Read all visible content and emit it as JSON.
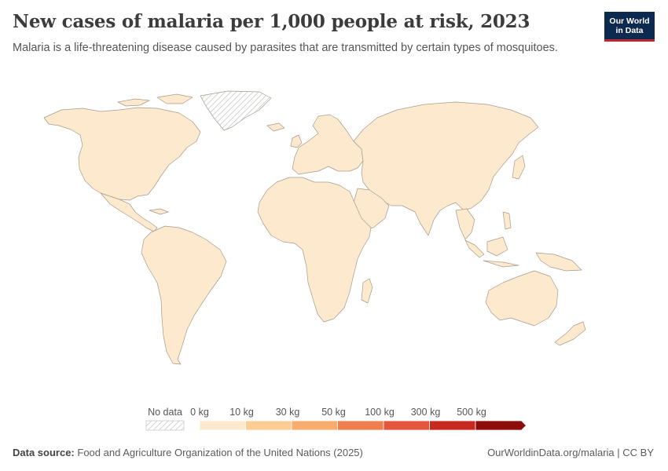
{
  "header": {
    "title": "New cases of malaria per 1,000 people at risk, 2023",
    "subtitle": "Malaria is a life-threatening disease caused by parasites that are transmitted by certain types of mosquitoes."
  },
  "logo": {
    "line1": "Our World",
    "line2": "in Data"
  },
  "legend": {
    "no_data_label": "No data",
    "bins": [
      "0 kg",
      "10 kg",
      "30 kg",
      "50 kg",
      "100 kg",
      "300 kg",
      "500 kg"
    ],
    "colors": [
      "#fde9cd",
      "#fbcd93",
      "#f8ad6e",
      "#f07f4f",
      "#e4563c",
      "#c8281e",
      "#8c0d0a"
    ]
  },
  "map": {
    "land_color": "#fde9cd",
    "border_color": "#a59a8c",
    "no_data_region": "Greenland"
  },
  "footer": {
    "source_label": "Data source:",
    "source_text": "Food and Agriculture Organization of the United Nations (2025)",
    "url_text": "OurWorldinData.org/malaria | CC BY"
  }
}
